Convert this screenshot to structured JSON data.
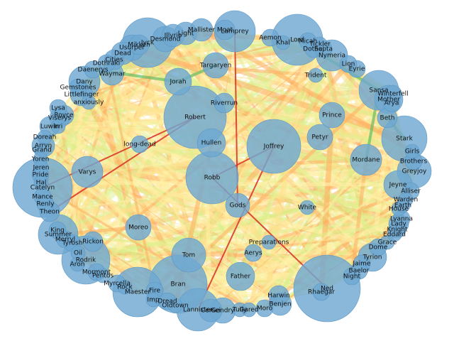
{
  "colors": {
    "node_fill": "#6fa8d2",
    "edge_weak": "#fff2a8",
    "edge_light": "#fde08b",
    "edge_mid": "#fdae61",
    "edge_strong": "#d73027",
    "edge_green": "#66bd63",
    "edge_pale_green": "#d9ef8b"
  },
  "nodes": [
    {
      "id": "Robert"
    },
    {
      "id": "Joffrey"
    },
    {
      "id": "Robb"
    },
    {
      "id": "Hullen"
    },
    {
      "id": "Riverrun"
    },
    {
      "id": "Jorah"
    },
    {
      "id": "Targaryen"
    },
    {
      "id": "Desmond"
    },
    {
      "id": "Illyrio"
    },
    {
      "id": "Light"
    },
    {
      "id": "Mallister"
    },
    {
      "id": "Moat"
    },
    {
      "id": "Lamprey"
    },
    {
      "id": "Aemon"
    },
    {
      "id": "Lord"
    },
    {
      "id": "Khal"
    },
    {
      "id": "Micah"
    },
    {
      "id": "Tickler"
    },
    {
      "id": "Jyck"
    },
    {
      "id": "Usurper"
    },
    {
      "id": "Mikken"
    },
    {
      "id": "Dead"
    },
    {
      "id": "Cities"
    },
    {
      "id": "Dothraki"
    },
    {
      "id": "Waymar"
    },
    {
      "id": "Daenerys"
    },
    {
      "id": "Dany"
    },
    {
      "id": "Gemstones"
    },
    {
      "id": "Littlefinger"
    },
    {
      "id": "anxiously"
    },
    {
      "id": "Lysa"
    },
    {
      "id": "Royce"
    },
    {
      "id": "Viserys"
    },
    {
      "id": "Luwin"
    },
    {
      "id": "Doreah"
    },
    {
      "id": "Arryn"
    },
    {
      "id": "Grand"
    },
    {
      "id": "Yoren"
    },
    {
      "id": "Jeren"
    },
    {
      "id": "Pride"
    },
    {
      "id": "Hal"
    },
    {
      "id": "Catelyn"
    },
    {
      "id": "Mance"
    },
    {
      "id": "Renly"
    },
    {
      "id": "Theon"
    },
    {
      "id": "Varys"
    },
    {
      "id": "long-dead"
    },
    {
      "id": "King"
    },
    {
      "id": "Summer"
    },
    {
      "id": "Merryl"
    },
    {
      "id": "Tyrosh"
    },
    {
      "id": "Rickon"
    },
    {
      "id": "Oil"
    },
    {
      "id": "Rodrik"
    },
    {
      "id": "Aron"
    },
    {
      "id": "Mormont"
    },
    {
      "id": "Pentos"
    },
    {
      "id": "Moreo"
    },
    {
      "id": "Tom"
    },
    {
      "id": "Myrcella"
    },
    {
      "id": "Rock"
    },
    {
      "id": "Maester"
    },
    {
      "id": "Fire"
    },
    {
      "id": "Bran"
    },
    {
      "id": "Dread"
    },
    {
      "id": "Imp"
    },
    {
      "id": "Oldtown"
    },
    {
      "id": "Lannister"
    },
    {
      "id": "Cersei"
    },
    {
      "id": "Gods"
    },
    {
      "id": "Aerys"
    },
    {
      "id": "Preparations"
    },
    {
      "id": "Father"
    },
    {
      "id": "Harwin"
    },
    {
      "id": "Benjen"
    },
    {
      "id": "Moro"
    },
    {
      "id": "Tully"
    },
    {
      "id": "Ned"
    },
    {
      "id": "Rhaegar"
    },
    {
      "id": "Gared"
    },
    {
      "id": "Tyrion"
    },
    {
      "id": "Jaime"
    },
    {
      "id": "Baelor"
    },
    {
      "id": "Night"
    },
    {
      "id": "Dome"
    },
    {
      "id": "Grace"
    },
    {
      "id": "Eddard"
    },
    {
      "id": "Knight"
    },
    {
      "id": "Lady"
    },
    {
      "id": "Lyanna"
    },
    {
      "id": "House"
    },
    {
      "id": "Earth"
    },
    {
      "id": "Warden"
    },
    {
      "id": "Alliser"
    },
    {
      "id": "Jeyne"
    },
    {
      "id": "Greyjoy"
    },
    {
      "id": "Brothers"
    },
    {
      "id": "Girls"
    },
    {
      "id": "Stark"
    },
    {
      "id": "Mordane"
    },
    {
      "id": "Beth"
    },
    {
      "id": "Petyr"
    },
    {
      "id": "Prince"
    },
    {
      "id": "Sansa"
    },
    {
      "id": "Mother"
    },
    {
      "id": "Arya"
    },
    {
      "id": "Winterfell"
    },
    {
      "id": "Trident"
    },
    {
      "id": "Eyrie"
    },
    {
      "id": "Lion"
    },
    {
      "id": "Nymeria"
    },
    {
      "id": "Dothai"
    },
    {
      "id": "Septa"
    },
    {
      "id": "White"
    },
    {
      "id": "Irri"
    },
    {
      "id": "Gendry"
    }
  ]
}
